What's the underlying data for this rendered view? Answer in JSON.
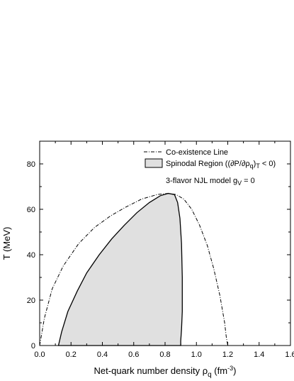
{
  "chart_data": {
    "type": "line",
    "title": "",
    "xlabel": "Net-quark number density ρ",
    "xlabel_sub": "q",
    "xlabel_unit_pre": " (fm",
    "xlabel_unit_sup": "-3",
    "xlabel_unit_post": ")",
    "ylabel": "T (MeV)",
    "xlim": [
      0.0,
      1.6
    ],
    "ylim": [
      0,
      90
    ],
    "xticks": [
      0.0,
      0.2,
      0.4,
      0.6,
      0.8,
      1.0,
      1.2,
      1.4,
      1.6
    ],
    "xtick_labels": [
      "0.0",
      "0.2",
      "0.4",
      "0.6",
      "0.8",
      "1.0",
      "1.2",
      "1.4",
      "1.6"
    ],
    "yticks": [
      0,
      20,
      40,
      60,
      80
    ],
    "ytick_labels": [
      "0",
      "20",
      "40",
      "60",
      "80"
    ],
    "legend_position": "top-right",
    "colors": {
      "spinodal_fill": "#e0e0e0",
      "line": "#000000"
    },
    "series": [
      {
        "name": "Co-existence Line",
        "style": "dash-dot",
        "x": [
          0.0,
          0.03,
          0.08,
          0.15,
          0.25,
          0.35,
          0.45,
          0.55,
          0.65,
          0.75,
          0.82,
          0.87,
          0.92,
          0.97,
          1.02,
          1.07,
          1.11,
          1.15,
          1.18,
          1.19,
          1.2
        ],
        "y": [
          0,
          12,
          25,
          35,
          45,
          52,
          57,
          61,
          64.5,
          66.5,
          67,
          66.5,
          64.5,
          60,
          53,
          44,
          34,
          22,
          10,
          4,
          0
        ]
      },
      {
        "name": "Spinodal Region ((∂P/∂ρq)T < 0)",
        "legend_main": "Spinodal Region ((∂P/∂ρ",
        "legend_sub1": "q",
        "legend_mid": ")",
        "legend_sub2": "T",
        "legend_end": " < 0)",
        "style": "filled",
        "x": [
          0.12,
          0.14,
          0.18,
          0.24,
          0.3,
          0.38,
          0.46,
          0.54,
          0.62,
          0.7,
          0.77,
          0.82,
          0.86,
          0.88,
          0.895,
          0.905,
          0.91,
          0.91,
          0.905,
          0.9,
          0.9
        ],
        "y": [
          0,
          6,
          15,
          24,
          32,
          40,
          47,
          53,
          58.5,
          63,
          66,
          67,
          66.5,
          63,
          56,
          45,
          30,
          15,
          7,
          2,
          0
        ]
      }
    ],
    "annotations": [
      {
        "text_main": "3-flavor NJL model  g",
        "text_sub": "V",
        "text_end": " = 0"
      }
    ]
  }
}
